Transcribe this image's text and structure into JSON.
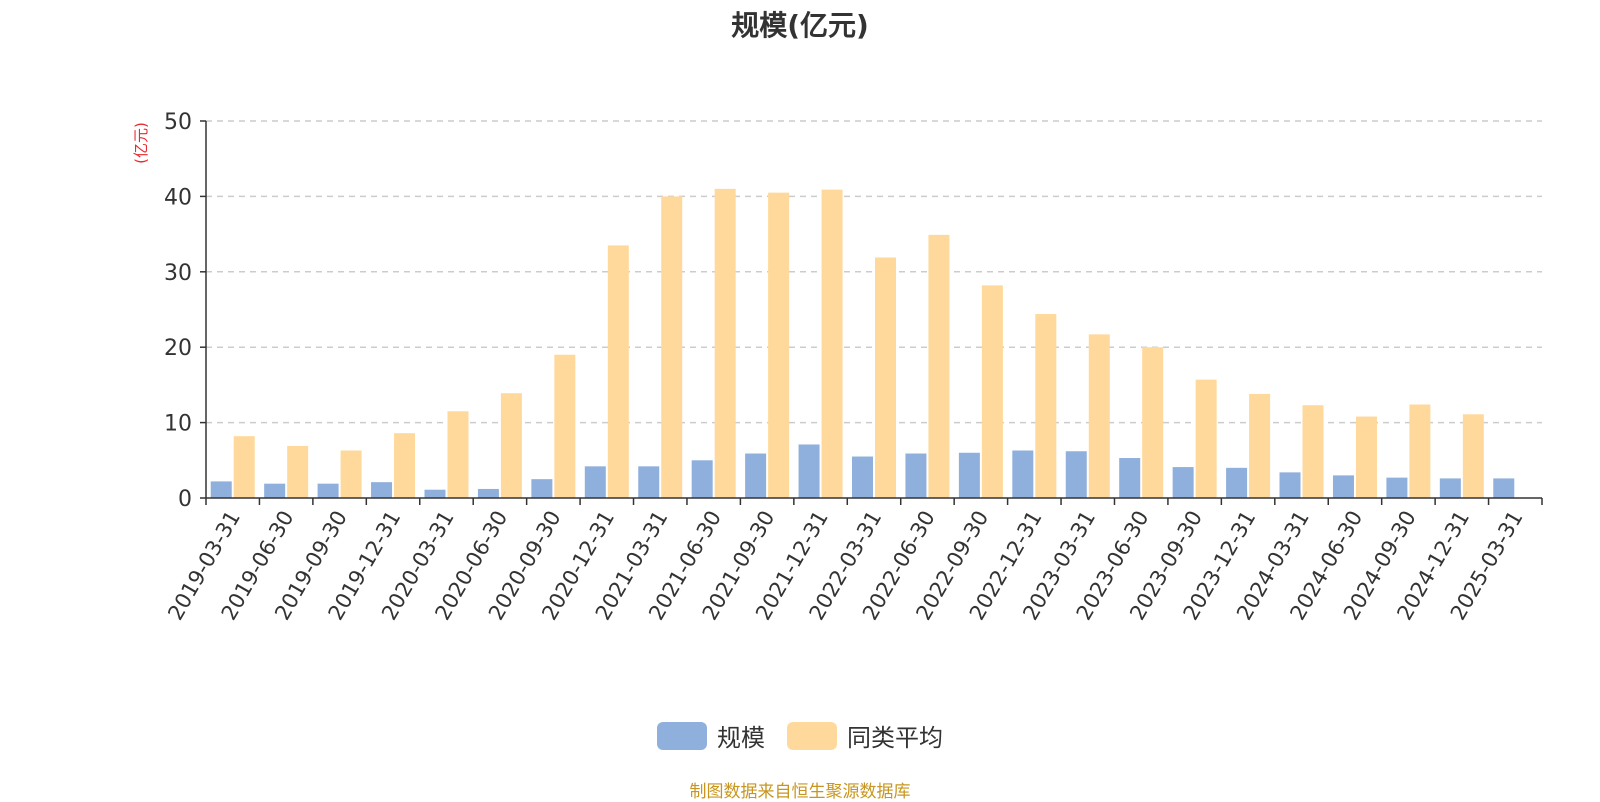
{
  "chart_data": {
    "type": "bar",
    "title": "规模(亿元)",
    "ylabel": "(亿元)",
    "ylim": [
      0,
      50
    ],
    "yticks": [
      0,
      10,
      20,
      30,
      40,
      50
    ],
    "grid": true,
    "legend_position": "bottom-center",
    "categories": [
      "2019-03-31",
      "2019-06-30",
      "2019-09-30",
      "2019-12-31",
      "2020-03-31",
      "2020-06-30",
      "2020-09-30",
      "2020-12-31",
      "2021-03-31",
      "2021-06-30",
      "2021-09-30",
      "2021-12-31",
      "2022-03-31",
      "2022-06-30",
      "2022-09-30",
      "2022-12-31",
      "2023-03-31",
      "2023-06-30",
      "2023-09-30",
      "2023-12-31",
      "2024-03-31",
      "2024-06-30",
      "2024-09-30",
      "2024-12-31",
      "2025-03-31"
    ],
    "series": [
      {
        "name": "规模",
        "color": "#8fb0dd",
        "values": [
          2.2,
          1.9,
          1.9,
          2.1,
          1.1,
          1.2,
          2.5,
          4.2,
          4.2,
          5.0,
          5.9,
          7.1,
          5.5,
          5.9,
          6.0,
          6.3,
          6.2,
          5.3,
          4.1,
          4.0,
          3.4,
          3.0,
          2.7,
          2.6,
          2.6
        ]
      },
      {
        "name": "同类平均",
        "color": "#ffd99b",
        "values": [
          8.2,
          6.9,
          6.3,
          8.6,
          11.5,
          13.9,
          19.0,
          33.5,
          40.0,
          41.0,
          40.5,
          40.9,
          31.9,
          34.9,
          28.2,
          24.4,
          21.7,
          20.0,
          15.7,
          13.8,
          12.3,
          10.8,
          12.4,
          11.1,
          null
        ]
      }
    ]
  },
  "footer": "制图数据来自恒生聚源数据库"
}
